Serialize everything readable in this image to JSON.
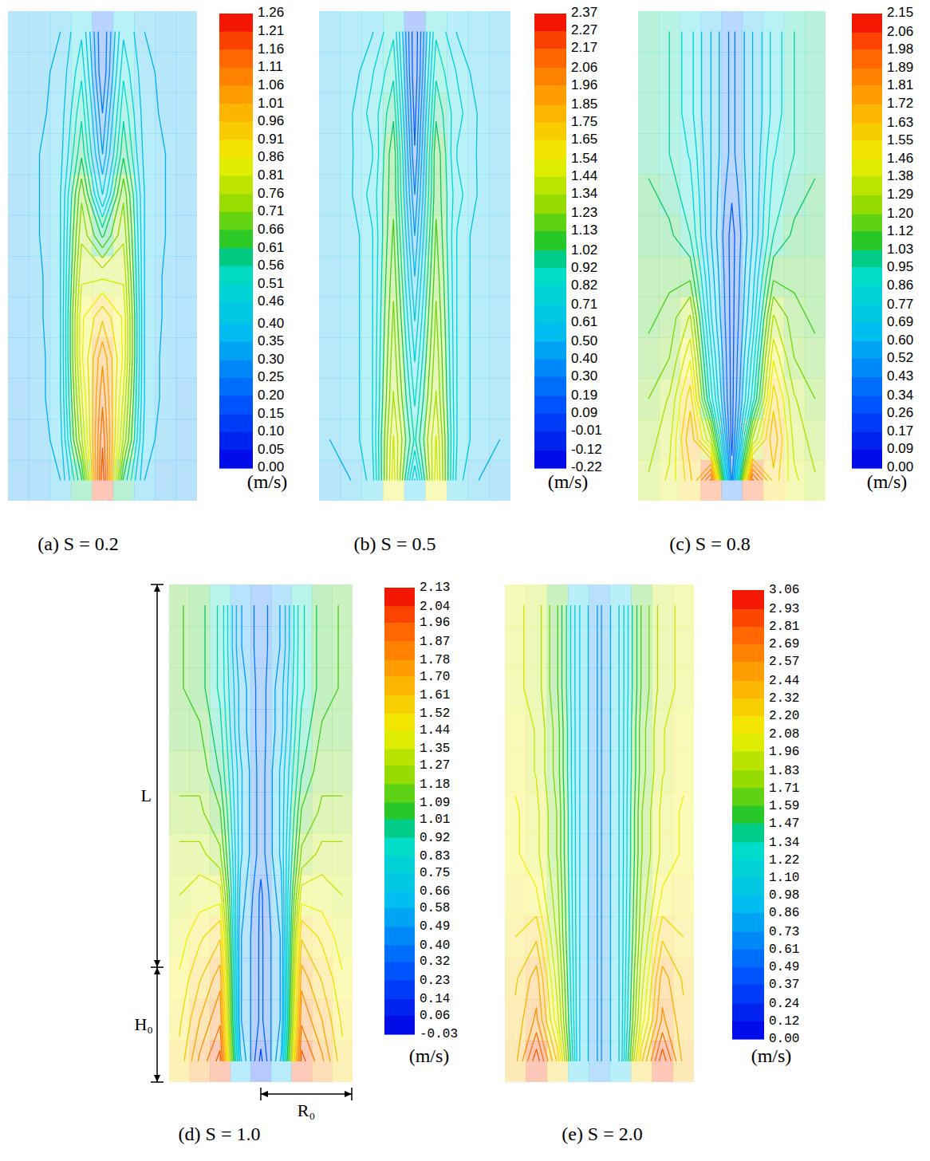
{
  "chart_data": [
    {
      "type": "contour",
      "title": "(a) S = 0.2",
      "tick_labels": false,
      "colorbar_label": "(m/s)",
      "colorbar_range": [
        0,
        1.26
      ],
      "colorbar_ticks": [
        1.26,
        1.21,
        1.16,
        1.11,
        1.06,
        1.01,
        0.96,
        0.91,
        0.86,
        0.81,
        0.76,
        0.71,
        0.66,
        0.61,
        0.56,
        0.51,
        0.46,
        {
          "value": 0.4,
          "label": "0.40"
        },
        0.35,
        {
          "value": 0.3,
          "label": "0.30"
        },
        0.25,
        {
          "value": 0.2,
          "label": "0.20"
        },
        0.15,
        {
          "value": 0.1,
          "label": "0.10"
        },
        0.05,
        {
          "value": 0,
          "label": "0.00"
        }
      ],
      "cells": [
        [
          0.33,
          0.33,
          0.35,
          0.45,
          0.2,
          0.45,
          0.35,
          0.33,
          0.33
        ],
        [
          0.33,
          0.34,
          0.36,
          0.5,
          0.2,
          0.5,
          0.36,
          0.34,
          0.33
        ],
        [
          0.33,
          0.34,
          0.37,
          0.55,
          0.25,
          0.55,
          0.37,
          0.34,
          0.33
        ],
        [
          0.33,
          0.35,
          0.38,
          0.6,
          0.3,
          0.6,
          0.38,
          0.35,
          0.33
        ],
        [
          0.32,
          0.35,
          0.4,
          0.7,
          0.4,
          0.7,
          0.4,
          0.35,
          0.32
        ],
        [
          0.32,
          0.35,
          0.4,
          0.75,
          0.6,
          0.75,
          0.4,
          0.35,
          0.32
        ],
        [
          0.32,
          0.34,
          0.4,
          0.8,
          0.8,
          0.8,
          0.4,
          0.34,
          0.32
        ],
        [
          0.31,
          0.34,
          0.4,
          0.85,
          0.95,
          0.85,
          0.4,
          0.34,
          0.31
        ],
        [
          0.31,
          0.33,
          0.4,
          0.85,
          1.05,
          0.85,
          0.4,
          0.33,
          0.31
        ],
        [
          0.3,
          0.33,
          0.4,
          0.8,
          1.1,
          0.8,
          0.4,
          0.33,
          0.3
        ],
        [
          0.3,
          0.32,
          0.38,
          0.75,
          1.15,
          0.75,
          0.38,
          0.32,
          0.3
        ],
        [
          0.3,
          0.3,
          0.35,
          0.6,
          1.2,
          0.6,
          0.35,
          0.3,
          0.3
        ]
      ]
    },
    {
      "type": "contour",
      "title": "(b) S = 0.5",
      "tick_labels": false,
      "colorbar_label": "(m/s)",
      "colorbar_range": [
        -0.22,
        2.37
      ],
      "colorbar_ticks": [
        2.37,
        2.27,
        2.17,
        2.06,
        1.96,
        1.85,
        1.75,
        1.65,
        1.54,
        1.44,
        1.34,
        1.23,
        1.13,
        1.02,
        0.92,
        0.82,
        0.71,
        0.61,
        {
          "value": 0.5,
          "label": "0.50"
        },
        {
          "value": 0.4,
          "label": "0.40"
        },
        {
          "value": 0.3,
          "label": "0.30"
        },
        0.19,
        0.09,
        -0.01,
        -0.12,
        -0.22
      ],
      "cells": [
        [
          0.5,
          0.55,
          0.6,
          0.8,
          0.1,
          0.8,
          0.6,
          0.55,
          0.5
        ],
        [
          0.5,
          0.55,
          0.7,
          0.9,
          0.1,
          0.9,
          0.7,
          0.55,
          0.5
        ],
        [
          0.5,
          0.6,
          0.75,
          1.0,
          0.15,
          1.0,
          0.75,
          0.6,
          0.5
        ],
        [
          0.5,
          0.6,
          0.7,
          1.1,
          0.2,
          1.1,
          0.7,
          0.6,
          0.5
        ],
        [
          0.5,
          0.6,
          0.75,
          1.1,
          0.3,
          1.1,
          0.75,
          0.6,
          0.5
        ],
        [
          0.5,
          0.55,
          0.7,
          1.15,
          0.4,
          1.15,
          0.7,
          0.55,
          0.5
        ],
        [
          0.5,
          0.55,
          0.7,
          1.2,
          0.5,
          1.2,
          0.7,
          0.55,
          0.5
        ],
        [
          0.5,
          0.55,
          0.7,
          1.25,
          0.6,
          1.25,
          0.7,
          0.55,
          0.5
        ],
        [
          0.5,
          0.55,
          0.7,
          1.3,
          0.7,
          1.3,
          0.7,
          0.55,
          0.5
        ],
        [
          0.5,
          0.55,
          0.7,
          1.35,
          0.8,
          1.35,
          0.7,
          0.55,
          0.5
        ],
        [
          0.5,
          0.55,
          0.7,
          1.45,
          0.9,
          1.45,
          0.7,
          0.55,
          0.5
        ],
        [
          0.45,
          0.5,
          0.65,
          1.5,
          0.6,
          1.5,
          0.65,
          0.5,
          0.45
        ]
      ]
    },
    {
      "type": "contour",
      "title": "(c) S = 0.8",
      "tick_labels": false,
      "colorbar_label": "(m/s)",
      "colorbar_range": [
        0,
        2.15
      ],
      "colorbar_ticks": [
        2.15,
        2.06,
        1.98,
        1.89,
        1.81,
        1.72,
        1.63,
        1.55,
        1.46,
        1.38,
        1.29,
        {
          "value": 1.2,
          "label": "1.20"
        },
        1.12,
        1.03,
        0.95,
        0.86,
        0.77,
        0.69,
        {
          "value": 0.6,
          "label": "0.60"
        },
        0.52,
        0.43,
        0.34,
        0.26,
        0.17,
        0.09,
        {
          "value": 0,
          "label": "0.00"
        }
      ],
      "cells": [
        [
          1.0,
          0.95,
          0.8,
          0.6,
          0.4,
          0.6,
          0.8,
          0.95,
          1.0
        ],
        [
          1.0,
          0.95,
          0.8,
          0.6,
          0.4,
          0.6,
          0.8,
          0.95,
          1.0
        ],
        [
          1.0,
          0.95,
          0.8,
          0.6,
          0.4,
          0.6,
          0.8,
          0.95,
          1.0
        ],
        [
          1.0,
          0.95,
          0.85,
          0.6,
          0.4,
          0.6,
          0.85,
          0.95,
          1.0
        ],
        [
          1.05,
          1.0,
          0.9,
          0.6,
          0.35,
          0.6,
          0.9,
          1.0,
          1.05
        ],
        [
          1.05,
          1.05,
          0.95,
          0.6,
          0.3,
          0.6,
          0.95,
          1.05,
          1.05
        ],
        [
          1.1,
          1.1,
          1.1,
          0.65,
          0.3,
          0.65,
          1.1,
          1.1,
          1.1
        ],
        [
          1.1,
          1.15,
          1.3,
          0.7,
          0.3,
          0.7,
          1.3,
          1.15,
          1.1
        ],
        [
          1.15,
          1.2,
          1.45,
          0.8,
          0.3,
          0.8,
          1.45,
          1.2,
          1.15
        ],
        [
          1.2,
          1.3,
          1.6,
          0.9,
          0.3,
          0.9,
          1.6,
          1.3,
          1.2
        ],
        [
          1.25,
          1.35,
          1.7,
          1.3,
          0.3,
          1.3,
          1.7,
          1.35,
          1.25
        ],
        [
          1.3,
          1.4,
          1.6,
          2.0,
          0.4,
          2.0,
          1.6,
          1.4,
          1.3
        ]
      ]
    },
    {
      "type": "contour",
      "title": "(d) S = 1.0",
      "tick_labels": false,
      "colorbar_label": "(m/s)",
      "colorbar_range": [
        -0.03,
        2.13
      ],
      "colorbar_ticks": [
        2.13,
        2.04,
        1.96,
        1.87,
        1.78,
        {
          "value": 1.7,
          "label": "1.70"
        },
        1.61,
        1.52,
        1.44,
        1.35,
        1.27,
        1.18,
        1.09,
        1.01,
        0.92,
        0.83,
        0.75,
        0.66,
        0.58,
        0.49,
        {
          "value": 0.4,
          "label": "0.40"
        },
        0.32,
        0.23,
        0.14,
        0.06,
        -0.03
      ],
      "annotations": [
        "L",
        "H₀",
        "R₀"
      ],
      "cells": [
        [
          1.1,
          1.05,
          0.9,
          0.5,
          0.35,
          0.5,
          0.9,
          1.05,
          1.1
        ],
        [
          1.1,
          1.05,
          0.9,
          0.5,
          0.35,
          0.5,
          0.9,
          1.05,
          1.1
        ],
        [
          1.1,
          1.05,
          0.9,
          0.55,
          0.35,
          0.55,
          0.9,
          1.05,
          1.1
        ],
        [
          1.1,
          1.1,
          0.95,
          0.55,
          0.35,
          0.55,
          0.95,
          1.1,
          1.1
        ],
        [
          1.15,
          1.15,
          1.0,
          0.6,
          0.35,
          0.6,
          1.0,
          1.15,
          1.15
        ],
        [
          1.2,
          1.2,
          1.1,
          0.6,
          0.35,
          0.6,
          1.1,
          1.2,
          1.2
        ],
        [
          1.3,
          1.3,
          1.2,
          0.6,
          0.35,
          0.6,
          1.2,
          1.3,
          1.3
        ],
        [
          1.35,
          1.4,
          1.4,
          0.55,
          0.3,
          0.55,
          1.4,
          1.4,
          1.35
        ],
        [
          1.4,
          1.5,
          1.6,
          0.5,
          0.3,
          0.5,
          1.6,
          1.5,
          1.4
        ],
        [
          1.45,
          1.6,
          1.75,
          0.5,
          0.3,
          0.5,
          1.75,
          1.6,
          1.45
        ],
        [
          1.5,
          1.7,
          1.85,
          0.5,
          0.3,
          0.5,
          1.85,
          1.7,
          1.5
        ],
        [
          1.55,
          1.8,
          2.0,
          0.6,
          0.2,
          0.6,
          2.0,
          1.8,
          1.55
        ]
      ]
    },
    {
      "type": "contour",
      "title": "(e) S = 2.0",
      "tick_labels": false,
      "colorbar_label": "(m/s)",
      "colorbar_range": [
        0,
        3.06
      ],
      "colorbar_ticks": [
        3.06,
        2.93,
        2.81,
        2.69,
        2.57,
        2.44,
        2.32,
        {
          "value": 2.2,
          "label": "2.20"
        },
        2.08,
        1.96,
        1.83,
        1.71,
        1.59,
        1.47,
        1.34,
        1.22,
        {
          "value": 1.1,
          "label": "1.10"
        },
        0.98,
        0.86,
        0.73,
        0.61,
        0.49,
        0.37,
        0.24,
        0.12,
        {
          "value": 0,
          "label": "0.00"
        }
      ],
      "cells": [
        [
          2.0,
          1.9,
          1.6,
          1.0,
          0.7,
          1.0,
          1.6,
          1.9,
          2.0
        ],
        [
          2.0,
          1.9,
          1.6,
          1.0,
          0.7,
          1.0,
          1.6,
          1.9,
          2.0
        ],
        [
          2.0,
          1.9,
          1.6,
          1.0,
          0.7,
          1.0,
          1.6,
          1.9,
          2.0
        ],
        [
          2.05,
          1.95,
          1.65,
          1.0,
          0.7,
          1.0,
          1.65,
          1.95,
          2.05
        ],
        [
          2.05,
          1.95,
          1.65,
          1.0,
          0.7,
          1.0,
          1.65,
          1.95,
          2.05
        ],
        [
          2.1,
          2.0,
          1.7,
          1.0,
          0.7,
          1.0,
          1.7,
          2.0,
          2.1
        ],
        [
          2.1,
          2.0,
          1.7,
          1.0,
          0.7,
          1.0,
          1.7,
          2.0,
          2.1
        ],
        [
          2.15,
          2.1,
          1.75,
          1.0,
          0.7,
          1.0,
          1.75,
          2.1,
          2.15
        ],
        [
          2.2,
          2.3,
          1.8,
          1.0,
          0.7,
          1.0,
          1.8,
          2.3,
          2.2
        ],
        [
          2.3,
          2.5,
          1.9,
          1.0,
          0.7,
          1.0,
          1.9,
          2.5,
          2.3
        ],
        [
          2.35,
          2.6,
          2.0,
          1.0,
          0.7,
          1.0,
          2.0,
          2.6,
          2.35
        ],
        [
          2.4,
          2.9,
          2.3,
          1.0,
          0.7,
          1.0,
          2.3,
          2.9,
          2.4
        ]
      ]
    }
  ]
}
